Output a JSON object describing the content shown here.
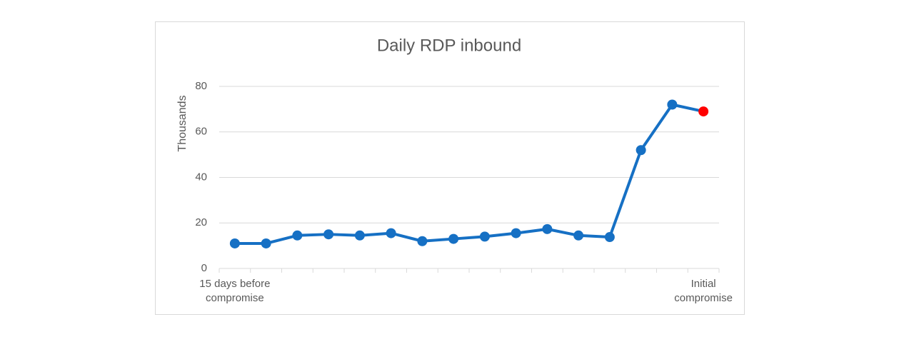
{
  "chart_data": {
    "type": "line",
    "title": "Daily RDP inbound",
    "y_label": "Thousands",
    "categories": [
      "15 days before compromise",
      null,
      null,
      null,
      null,
      null,
      null,
      null,
      null,
      null,
      null,
      null,
      null,
      null,
      null,
      "Initial compromise"
    ],
    "series": [
      {
        "color": "#1670c4",
        "values": [
          11,
          11,
          14.5,
          15,
          14.5,
          15.5,
          12,
          13,
          14,
          15.5,
          17.3,
          14.5,
          13.8,
          52,
          72,
          69
        ],
        "marker_colors": [
          "#1670c4",
          "#1670c4",
          "#1670c4",
          "#1670c4",
          "#1670c4",
          "#1670c4",
          "#1670c4",
          "#1670c4",
          "#1670c4",
          "#1670c4",
          "#1670c4",
          "#1670c4",
          "#1670c4",
          "#1670c4",
          "#1670c4",
          "#ff0000"
        ]
      }
    ],
    "ylim": [
      0,
      80
    ],
    "yticks": [
      0,
      20,
      40,
      60,
      80
    ],
    "grid": true
  }
}
